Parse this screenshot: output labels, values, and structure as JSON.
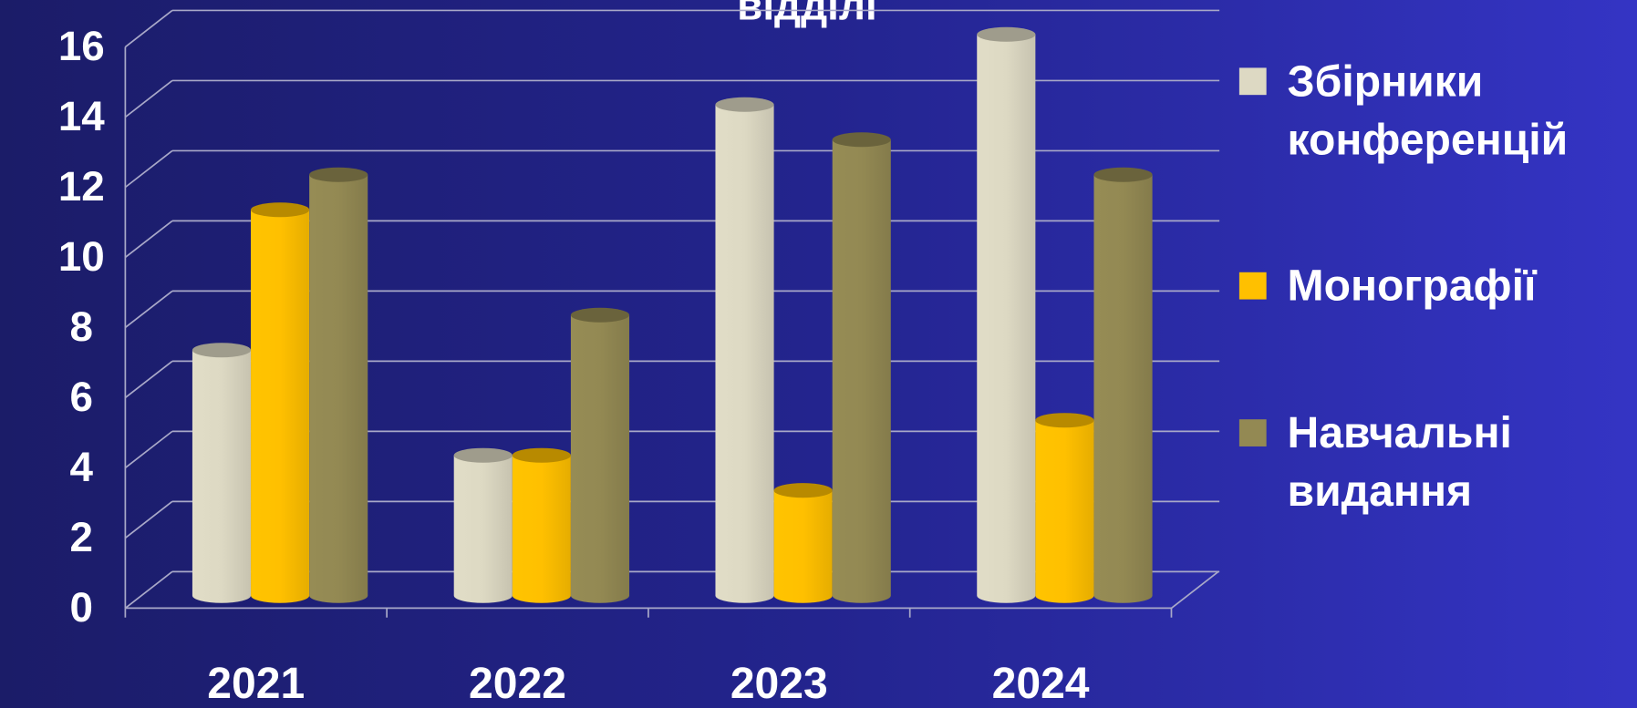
{
  "chart_data": {
    "type": "bar3d",
    "title": "відділі",
    "categories": [
      "2021",
      "2022",
      "2023",
      "2024"
    ],
    "series": [
      {
        "name": "Збірники конференцій",
        "color": "#ddd9c3",
        "values": [
          7,
          4,
          14,
          16
        ]
      },
      {
        "name": "Монографії",
        "color": "#ffc000",
        "values": [
          11,
          4,
          3,
          5
        ]
      },
      {
        "name": "Навчальні видання",
        "color": "#938953",
        "values": [
          12,
          8,
          13,
          12
        ]
      }
    ],
    "ylim": [
      0,
      16
    ],
    "yticks": [
      0,
      2,
      4,
      6,
      8,
      10,
      12,
      14,
      16
    ],
    "grid": true,
    "legend": "right"
  }
}
